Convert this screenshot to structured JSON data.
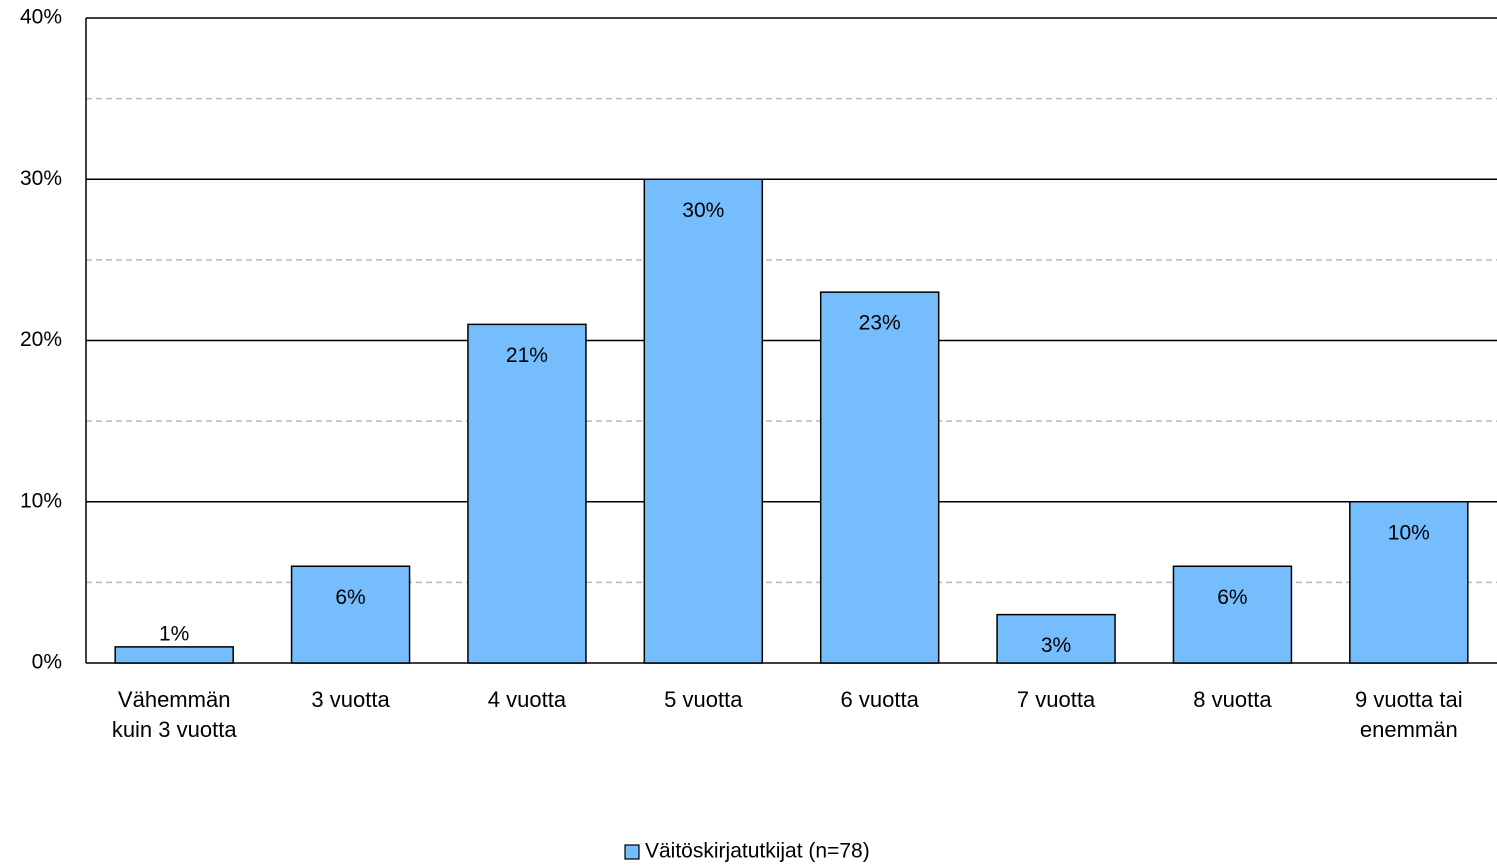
{
  "chart_data": {
    "type": "bar",
    "categories": [
      "Vähemmän kuin 3 vuotta",
      "3 vuotta",
      "4 vuotta",
      "5 vuotta",
      "6 vuotta",
      "7 vuotta",
      "8 vuotta",
      "9 vuotta tai enemmän"
    ],
    "series": [
      {
        "name": "Väitöskirjatutkijat (n=78)",
        "color": "#75bdfd",
        "values": [
          1,
          6,
          21,
          30,
          23,
          3,
          6,
          10
        ],
        "value_labels": [
          "1%",
          "6%",
          "21%",
          "30%",
          "23%",
          "3%",
          "6%",
          "10%"
        ]
      }
    ],
    "ylim": [
      0,
      40
    ],
    "yticks": [
      {
        "value": 0,
        "label": "0%"
      },
      {
        "value": 10,
        "label": "10%"
      },
      {
        "value": 20,
        "label": "20%"
      },
      {
        "value": 30,
        "label": "30%"
      },
      {
        "value": 40,
        "label": "40%"
      }
    ],
    "minor_yticks": [
      5,
      15,
      25,
      35
    ],
    "grid": true,
    "legend": "bottom"
  }
}
